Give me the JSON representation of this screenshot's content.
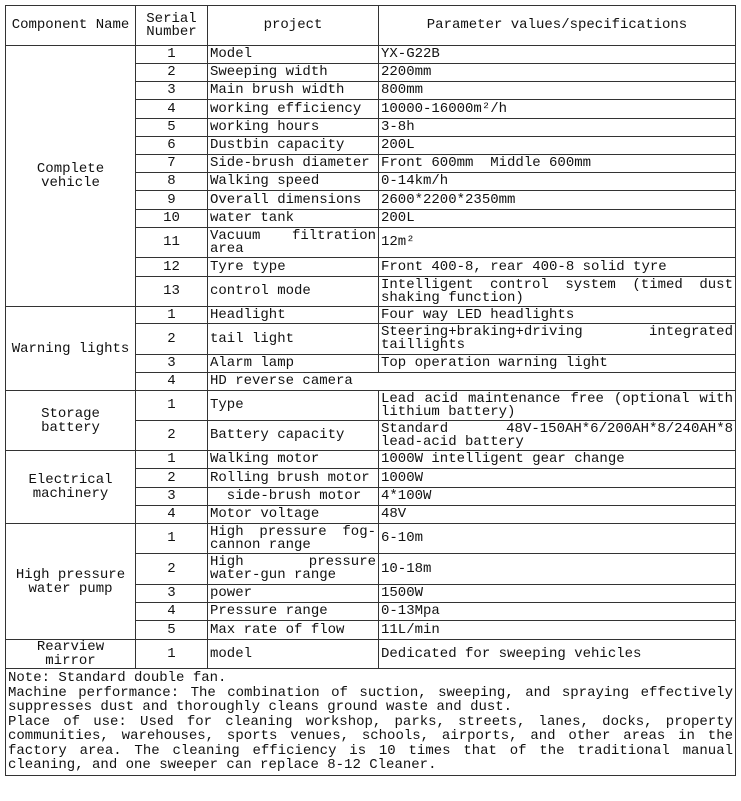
{
  "header": {
    "component": "Component Name",
    "serial": "Serial Number",
    "project": "project",
    "params": "Parameter values/specifications"
  },
  "groups": [
    {
      "name": "Complete vehicle",
      "rows": [
        {
          "no": "1",
          "project": "Model",
          "value": "YX-G22B"
        },
        {
          "no": "2",
          "project": "Sweeping width",
          "value": "2200mm"
        },
        {
          "no": "3",
          "project": "Main brush width",
          "value": "800mm"
        },
        {
          "no": "4",
          "project": "working efficiency",
          "value": "10000-16000m²/h"
        },
        {
          "no": "5",
          "project": "working hours",
          "value": "3-8h"
        },
        {
          "no": "6",
          "project": "Dustbin capacity",
          "value": "200L"
        },
        {
          "no": "7",
          "project": "Side-brush diameter",
          "value": "Front 600mm  Middle 600mm"
        },
        {
          "no": "8",
          "project": "Walking speed",
          "value": "0-14km/h"
        },
        {
          "no": "9",
          "project": "Overall dimensions",
          "value": "2600*2200*2350mm"
        },
        {
          "no": "10",
          "project": "water tank",
          "value": "200L"
        },
        {
          "no": "11",
          "project": "Vacuum filtration area",
          "value": "12m²"
        },
        {
          "no": "12",
          "project": "Tyre type",
          "value": "Front 400-8, rear 400-8 solid tyre"
        },
        {
          "no": "13",
          "project": "control mode",
          "value": "Intelligent control system (timed dust shaking function)"
        }
      ]
    },
    {
      "name": "Warning lights",
      "rows": [
        {
          "no": "1",
          "project": "Headlight",
          "value": "Four way LED headlights"
        },
        {
          "no": "2",
          "project": "tail light",
          "value": "Steering+braking+driving integrated taillights"
        },
        {
          "no": "3",
          "project": "Alarm lamp",
          "value": "Top operation warning light"
        },
        {
          "no": "4",
          "project": "HD reverse camera",
          "value": ""
        }
      ]
    },
    {
      "name": "Storage battery",
      "rows": [
        {
          "no": "1",
          "project": "Type",
          "value": "Lead acid maintenance free (optional with lithium battery)"
        },
        {
          "no": "2",
          "project": "Battery capacity",
          "value": "Standard 48V-150AH*6/200AH*8/240AH*8 lead-acid battery"
        }
      ]
    },
    {
      "name": "Electrical machinery",
      "rows": [
        {
          "no": "1",
          "project": "Walking motor",
          "value": "1000W intelligent gear change"
        },
        {
          "no": "2",
          "project": "Rolling brush motor",
          "value": "1000W"
        },
        {
          "no": "3",
          "project": "  side-brush motor",
          "value": "4*100W"
        },
        {
          "no": "4",
          "project": "Motor voltage",
          "value": "48V"
        }
      ]
    },
    {
      "name": "High pressure water pump",
      "rows": [
        {
          "no": "1",
          "project": "High pressure fog-cannon range",
          "value": "6-10m"
        },
        {
          "no": "2",
          "project": "High pressure water-gun range",
          "value": "10-18m"
        },
        {
          "no": "3",
          "project": "power",
          "value": "1500W"
        },
        {
          "no": "4",
          "project": "Pressure range",
          "value": "0-13Mpa"
        },
        {
          "no": "5",
          "project": "Max rate of flow",
          "value": "11L/min"
        }
      ]
    },
    {
      "name": "Rearview mirror",
      "rows": [
        {
          "no": "1",
          "project": "model",
          "value": "Dedicated for sweeping vehicles"
        }
      ]
    }
  ],
  "notes": [
    "Note: Standard  double fan.",
    "Machine performance: The combination of suction, sweeping, and spraying effectively suppresses dust and thoroughly cleans ground waste and dust.",
    "Place of use: Used for cleaning workshop, parks, streets, lanes, docks, property communities, warehouses, sports venues, schools, airports, and other areas in the factory area. The cleaning efficiency is 10 times that of the traditional manual cleaning, and one sweeper can replace 8-12 Cleaner."
  ]
}
